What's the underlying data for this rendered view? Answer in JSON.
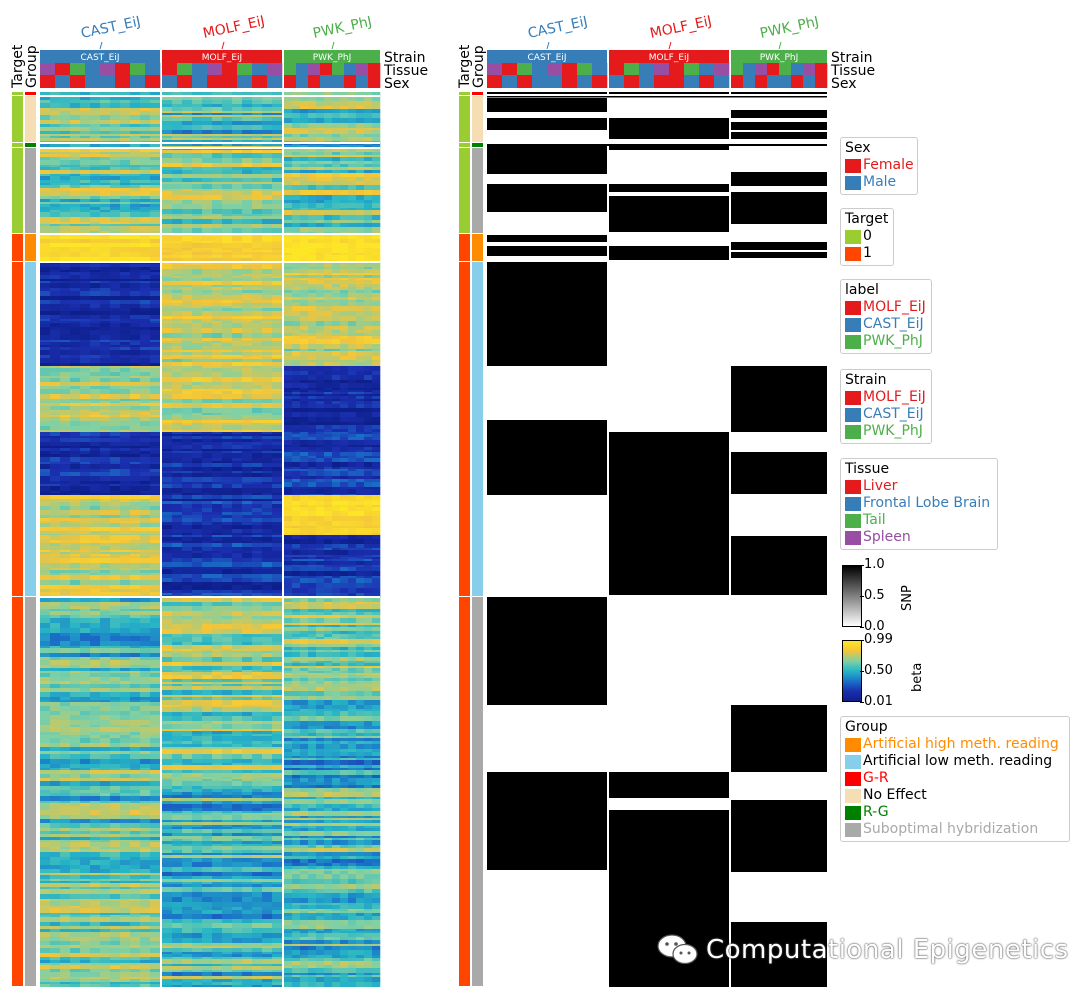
{
  "chart_data": [
    {
      "type": "heatmap",
      "panel": "beta",
      "column_groups": [
        {
          "label": "CAST_EiJ",
          "color": "#377eb8"
        },
        {
          "label": "MOLF_EiJ",
          "color": "#e41a1c"
        },
        {
          "label": "PWK_PhJ",
          "color": "#4daf4a"
        }
      ],
      "row_group_order": [
        "R-G",
        "No Effect",
        "G-R",
        "Suboptimal hybridization",
        "Artificial high meth. reading",
        "Artificial low meth. reading",
        "Suboptimal hybridization"
      ],
      "row_group_targets": [
        0,
        0,
        0,
        0,
        1,
        1,
        1
      ],
      "annotation_rows": [
        "Strain",
        "Tissue",
        "Sex"
      ],
      "annotation_columns": [
        "Target",
        "Group"
      ],
      "colorbar": {
        "label": "beta",
        "ticks": [
          "0.99",
          "0.50",
          "0.01"
        ],
        "vmin": 0.01,
        "vmax": 0.99
      }
    },
    {
      "type": "heatmap",
      "panel": "SNP",
      "column_groups": [
        {
          "label": "CAST_EiJ",
          "color": "#377eb8"
        },
        {
          "label": "MOLF_EiJ",
          "color": "#e41a1c"
        },
        {
          "label": "PWK_PhJ",
          "color": "#4daf4a"
        }
      ],
      "annotation_rows": [
        "Strain",
        "Tissue",
        "Sex"
      ],
      "annotation_columns": [
        "Target",
        "Group"
      ],
      "colorbar": {
        "label": "SNP",
        "ticks": [
          "1.0",
          "0.5",
          "0.0"
        ],
        "vmin": 0.0,
        "vmax": 1.0
      }
    }
  ],
  "legends": {
    "sex": {
      "title": "Sex",
      "items": [
        {
          "label": "Female",
          "color": "#e41a1c"
        },
        {
          "label": "Male",
          "color": "#377eb8"
        }
      ]
    },
    "target": {
      "title": "Target",
      "items": [
        {
          "label": "0",
          "color": "#9acd32"
        },
        {
          "label": "1",
          "color": "#ff4500"
        }
      ]
    },
    "label": {
      "title": "label",
      "items": [
        {
          "label": "MOLF_EiJ",
          "color": "#e41a1c"
        },
        {
          "label": "CAST_EiJ",
          "color": "#377eb8"
        },
        {
          "label": "PWK_PhJ",
          "color": "#4daf4a"
        }
      ]
    },
    "strain": {
      "title": "Strain",
      "items": [
        {
          "label": "MOLF_EiJ",
          "color": "#e41a1c"
        },
        {
          "label": "CAST_EiJ",
          "color": "#377eb8"
        },
        {
          "label": "PWK_PhJ",
          "color": "#4daf4a"
        }
      ]
    },
    "tissue": {
      "title": "Tissue",
      "items": [
        {
          "label": "Liver",
          "color": "#e41a1c"
        },
        {
          "label": "Frontal Lobe Brain",
          "color": "#377eb8"
        },
        {
          "label": "Tail",
          "color": "#4daf4a"
        },
        {
          "label": "Spleen",
          "color": "#984ea3"
        }
      ]
    },
    "group": {
      "title": "Group",
      "items": [
        {
          "label": "Artificial high meth. reading",
          "color": "#ff8c00",
          "text_color": "#ff8c00"
        },
        {
          "label": "Artificial low meth. reading",
          "color": "#87ceeb",
          "text_color": "#000000"
        },
        {
          "label": "G-R",
          "color": "#ff0000",
          "text_color": "#ff0000"
        },
        {
          "label": "No Effect",
          "color": "#f5deb3",
          "text_color": "#000000"
        },
        {
          "label": "R-G",
          "color": "#008000",
          "text_color": "#008000"
        },
        {
          "label": "Suboptimal hybridization",
          "color": "#a9a9a9",
          "text_color": "#a9a9a9"
        }
      ]
    }
  },
  "labels": {
    "target": "Target",
    "group": "Group",
    "strain": "Strain",
    "tissue": "Tissue",
    "sex": "Sex"
  },
  "watermark": "Computational Epigenetics"
}
